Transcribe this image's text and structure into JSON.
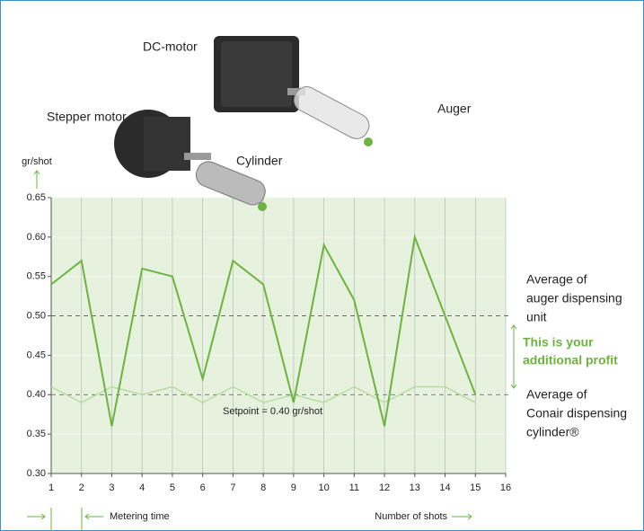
{
  "chart_data": {
    "type": "line",
    "y_axis_label": "gr/shot",
    "x_axis_label": "Number of shots",
    "metering_label": "Metering time",
    "xlim": [
      1,
      16
    ],
    "xticks": [
      1,
      2,
      3,
      4,
      5,
      6,
      7,
      8,
      9,
      10,
      11,
      12,
      13,
      14,
      15,
      16
    ],
    "ylim": [
      0.3,
      0.65
    ],
    "yticks": [
      {
        "value": 0.3,
        "label": "0.30"
      },
      {
        "value": 0.35,
        "label": "0.35"
      },
      {
        "value": 0.4,
        "label": "0.40"
      },
      {
        "value": 0.45,
        "label": "0.45"
      },
      {
        "value": 0.5,
        "label": "0.50"
      },
      {
        "value": 0.55,
        "label": "0.55"
      },
      {
        "value": 0.6,
        "label": "0.60"
      },
      {
        "value": 0.65,
        "label": "0.65"
      }
    ],
    "grid": true,
    "x": [
      1,
      2,
      3,
      4,
      5,
      6,
      7,
      8,
      9,
      10,
      11,
      12,
      13,
      14,
      15
    ],
    "series": [
      {
        "name": "Auger",
        "color": "#6db33f",
        "values": [
          0.54,
          0.57,
          0.36,
          0.56,
          0.55,
          0.42,
          0.57,
          0.54,
          0.39,
          0.59,
          0.52,
          0.36,
          0.6,
          0.5,
          0.4
        ]
      },
      {
        "name": "Cylinder",
        "color": "#b9dba0",
        "values": [
          0.41,
          0.39,
          0.41,
          0.4,
          0.41,
          0.39,
          0.41,
          0.39,
          0.4,
          0.39,
          0.41,
          0.39,
          0.41,
          0.41,
          0.39
        ]
      }
    ],
    "reference_lines": [
      0.5,
      0.4
    ],
    "setpoint_label": "Setpoint = 0.40 gr/shot",
    "auger_average_label": [
      "Average of",
      "auger dispensing",
      "unit"
    ],
    "cylinder_average_label": [
      "Average of",
      "Conair dispensing",
      "cylinder®"
    ],
    "profit_label": [
      "This is your",
      "additional profit"
    ],
    "motor_labels": {
      "dc": "DC-motor",
      "stepper": "Stepper motor"
    }
  }
}
